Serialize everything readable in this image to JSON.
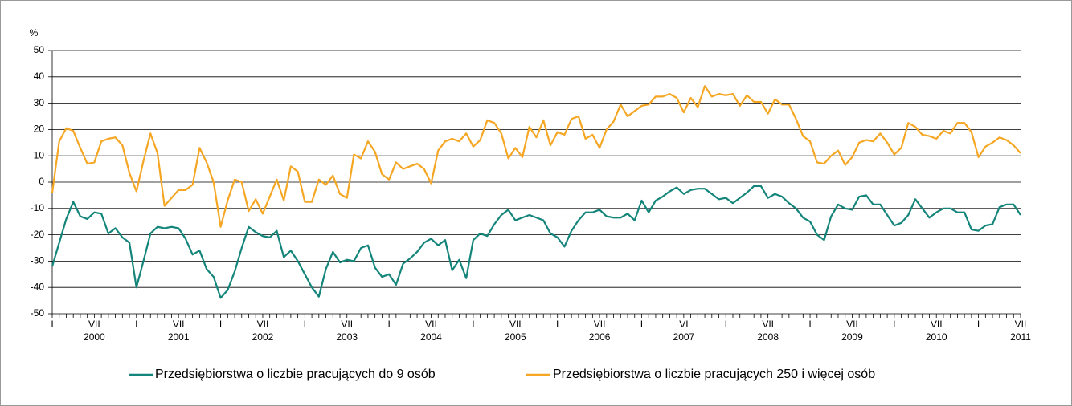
{
  "chart_data": {
    "type": "line",
    "y_unit": "%",
    "categories": [
      "I",
      null,
      null,
      null,
      null,
      null,
      "VII",
      null,
      null,
      null,
      null,
      null,
      "I",
      null,
      null,
      null,
      null,
      null,
      "VII",
      null,
      null,
      null,
      null,
      null,
      "I",
      null,
      null,
      null,
      null,
      null,
      "VII",
      null,
      null,
      null,
      null,
      null,
      "I",
      null,
      null,
      null,
      null,
      null,
      "VII",
      null,
      null,
      null,
      null,
      null,
      "I",
      null,
      null,
      null,
      null,
      null,
      "VII",
      null,
      null,
      null,
      null,
      null,
      "I",
      null,
      null,
      null,
      null,
      null,
      "VII",
      null,
      null,
      null,
      null,
      null,
      "I",
      null,
      null,
      null,
      null,
      null,
      "VII",
      null,
      null,
      null,
      null,
      null,
      "I",
      null,
      null,
      null,
      null,
      null,
      "VI",
      null,
      null,
      null,
      null,
      null,
      "I",
      null,
      null,
      null,
      null,
      null,
      "VII",
      null,
      null,
      null,
      null,
      null,
      "I",
      null,
      null,
      null,
      null,
      null,
      "VII",
      null,
      null,
      null,
      null,
      null,
      "I",
      null,
      null,
      null,
      null,
      null,
      "VII",
      null,
      null,
      null,
      null,
      null,
      "I",
      null,
      null,
      null,
      null,
      null,
      "VII"
    ],
    "years": [
      "2000",
      "2001",
      "2002",
      "2003",
      "2004",
      "2005",
      "2006",
      "2007",
      "2008",
      "2009",
      "2010",
      "2011"
    ],
    "series": [
      {
        "name": "Przedsiębiorstwa o liczbie pracujących do 9 osób",
        "color": "#14857a",
        "values": [
          -32,
          -23,
          -14,
          -7.5,
          -13,
          -14,
          -11.5,
          -12,
          -19.5,
          -17.5,
          -21,
          -23,
          -40,
          -30,
          -19.5,
          -17,
          -17.5,
          -17,
          -17.5,
          -21.5,
          -27.5,
          -26,
          -33,
          -36,
          -44,
          -41,
          -34,
          -25,
          -17,
          -19,
          -20.5,
          -21,
          -18.5,
          -28.5,
          -26,
          -30,
          -35,
          -40,
          -43.5,
          -33,
          -26.5,
          -30.5,
          -29.5,
          -30,
          -25,
          -24,
          -32.5,
          -36,
          -35,
          -39,
          -31,
          -29,
          -26.5,
          -23,
          -21.5,
          -24,
          -22,
          -33.5,
          -29.5,
          -36.5,
          -22,
          -19.5,
          -20.5,
          -16,
          -12.5,
          -10.5,
          -14.5,
          -13.5,
          -12.5,
          -13.5,
          -14.5,
          -19.5,
          -21,
          -24.5,
          -18.5,
          -14.5,
          -11.5,
          -11.5,
          -10.5,
          -13,
          -13.5,
          -13.5,
          -12,
          -14.5,
          -7,
          -11.5,
          -7,
          -5.5,
          -3.5,
          -2,
          -4.5,
          -3,
          -2.5,
          -2.5,
          -4.5,
          -6.5,
          -6,
          -8,
          -6,
          -4,
          -1.5,
          -1.5,
          -6,
          -4.5,
          -5.5,
          -8,
          -10,
          -13.5,
          -15,
          -20,
          -22,
          -13,
          -8.5,
          -10,
          -10.5,
          -5.5,
          -5,
          -8.5,
          -8.5,
          -12.5,
          -16.5,
          -15.5,
          -12.5,
          -6.5,
          -10,
          -13.5,
          -11.5,
          -10,
          -10,
          -11.5,
          -11.5,
          -18,
          -18.5,
          -16.5,
          -16,
          -9.5,
          -8.5,
          -8.5,
          -12.5
        ]
      },
      {
        "name": "Przedsiębiorstwa o liczbie pracujących 250 i więcej osób",
        "color": "#f5a623",
        "values": [
          -4,
          15.5,
          20.5,
          19.5,
          13,
          7,
          7.5,
          15.5,
          16.5,
          17,
          14,
          3.5,
          -3.5,
          8,
          18.5,
          11,
          -9,
          -6,
          -3,
          -3,
          -1,
          13,
          7.5,
          0,
          -17,
          -7,
          1,
          0,
          -11,
          -6.5,
          -12,
          -5.5,
          1,
          -7,
          6,
          4,
          -7.5,
          -7.5,
          1,
          -1,
          2.5,
          -4.5,
          -6,
          10.5,
          9,
          15.5,
          11.5,
          3,
          1,
          7.5,
          5,
          6,
          7,
          5,
          -0.5,
          12,
          15.5,
          16.5,
          15.5,
          18.5,
          13.5,
          16,
          23.5,
          22.5,
          18.5,
          9,
          13,
          9.5,
          21,
          17,
          23.5,
          14,
          19,
          18,
          24,
          25,
          16.5,
          18,
          13,
          20,
          23,
          29.5,
          25,
          27,
          29,
          29.5,
          32.5,
          32.5,
          33.5,
          32,
          26.5,
          32,
          28.5,
          36.5,
          32.5,
          33.5,
          33,
          33.5,
          29,
          33,
          30.5,
          30.5,
          26,
          31.5,
          29.5,
          29.5,
          24,
          17.5,
          15.5,
          7.5,
          7,
          10,
          12,
          6.5,
          9.5,
          15,
          16,
          15.5,
          18.5,
          15,
          10.5,
          13,
          22.5,
          21,
          18,
          17.5,
          16.5,
          19.5,
          18.5,
          22.5,
          22.5,
          19,
          9.5,
          13.5,
          15,
          17,
          16,
          14,
          11
        ]
      }
    ],
    "ylim": [
      -50,
      50
    ],
    "yticks": [
      -50,
      -40,
      -30,
      -20,
      -10,
      0,
      10,
      20,
      30,
      40,
      50
    ],
    "grid": true,
    "legend": "bottom"
  }
}
